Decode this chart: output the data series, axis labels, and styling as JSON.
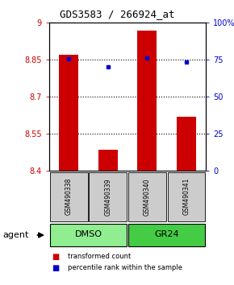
{
  "title": "GDS3583 / 266924_at",
  "samples": [
    "GSM490338",
    "GSM490339",
    "GSM490340",
    "GSM490341"
  ],
  "bar_values": [
    8.87,
    8.485,
    8.97,
    8.62
  ],
  "bar_base": 8.4,
  "dot_values": [
    75.5,
    70.5,
    76.5,
    73.5
  ],
  "ylim_left": [
    8.4,
    9.0
  ],
  "ylim_right": [
    0,
    100
  ],
  "yticks_left": [
    8.4,
    8.55,
    8.7,
    8.85,
    9.0
  ],
  "ytick_labels_left": [
    "8.4",
    "8.55",
    "8.7",
    "8.85",
    "9"
  ],
  "yticks_right": [
    0,
    25,
    50,
    75,
    100
  ],
  "ytick_labels_right": [
    "0",
    "25",
    "50",
    "75",
    "100%"
  ],
  "hlines": [
    8.55,
    8.7,
    8.85
  ],
  "bar_color": "#cc0000",
  "dot_color": "#0000cc",
  "group_labels": [
    "DMSO",
    "GR24"
  ],
  "group_ranges": [
    [
      0,
      2
    ],
    [
      2,
      4
    ]
  ],
  "group_color_dmso": "#90ee90",
  "group_color_gr24": "#44cc44",
  "sample_bg_color": "#cccccc",
  "agent_label": "agent",
  "legend_bar_label": "transformed count",
  "legend_dot_label": "percentile rank within the sample",
  "bar_width": 0.5,
  "left_tick_color": "#cc0000",
  "right_tick_color": "#0000cc",
  "title_fontsize": 9,
  "tick_fontsize": 7,
  "sample_fontsize": 5.5,
  "group_fontsize": 8,
  "legend_fontsize": 6,
  "agent_fontsize": 8
}
